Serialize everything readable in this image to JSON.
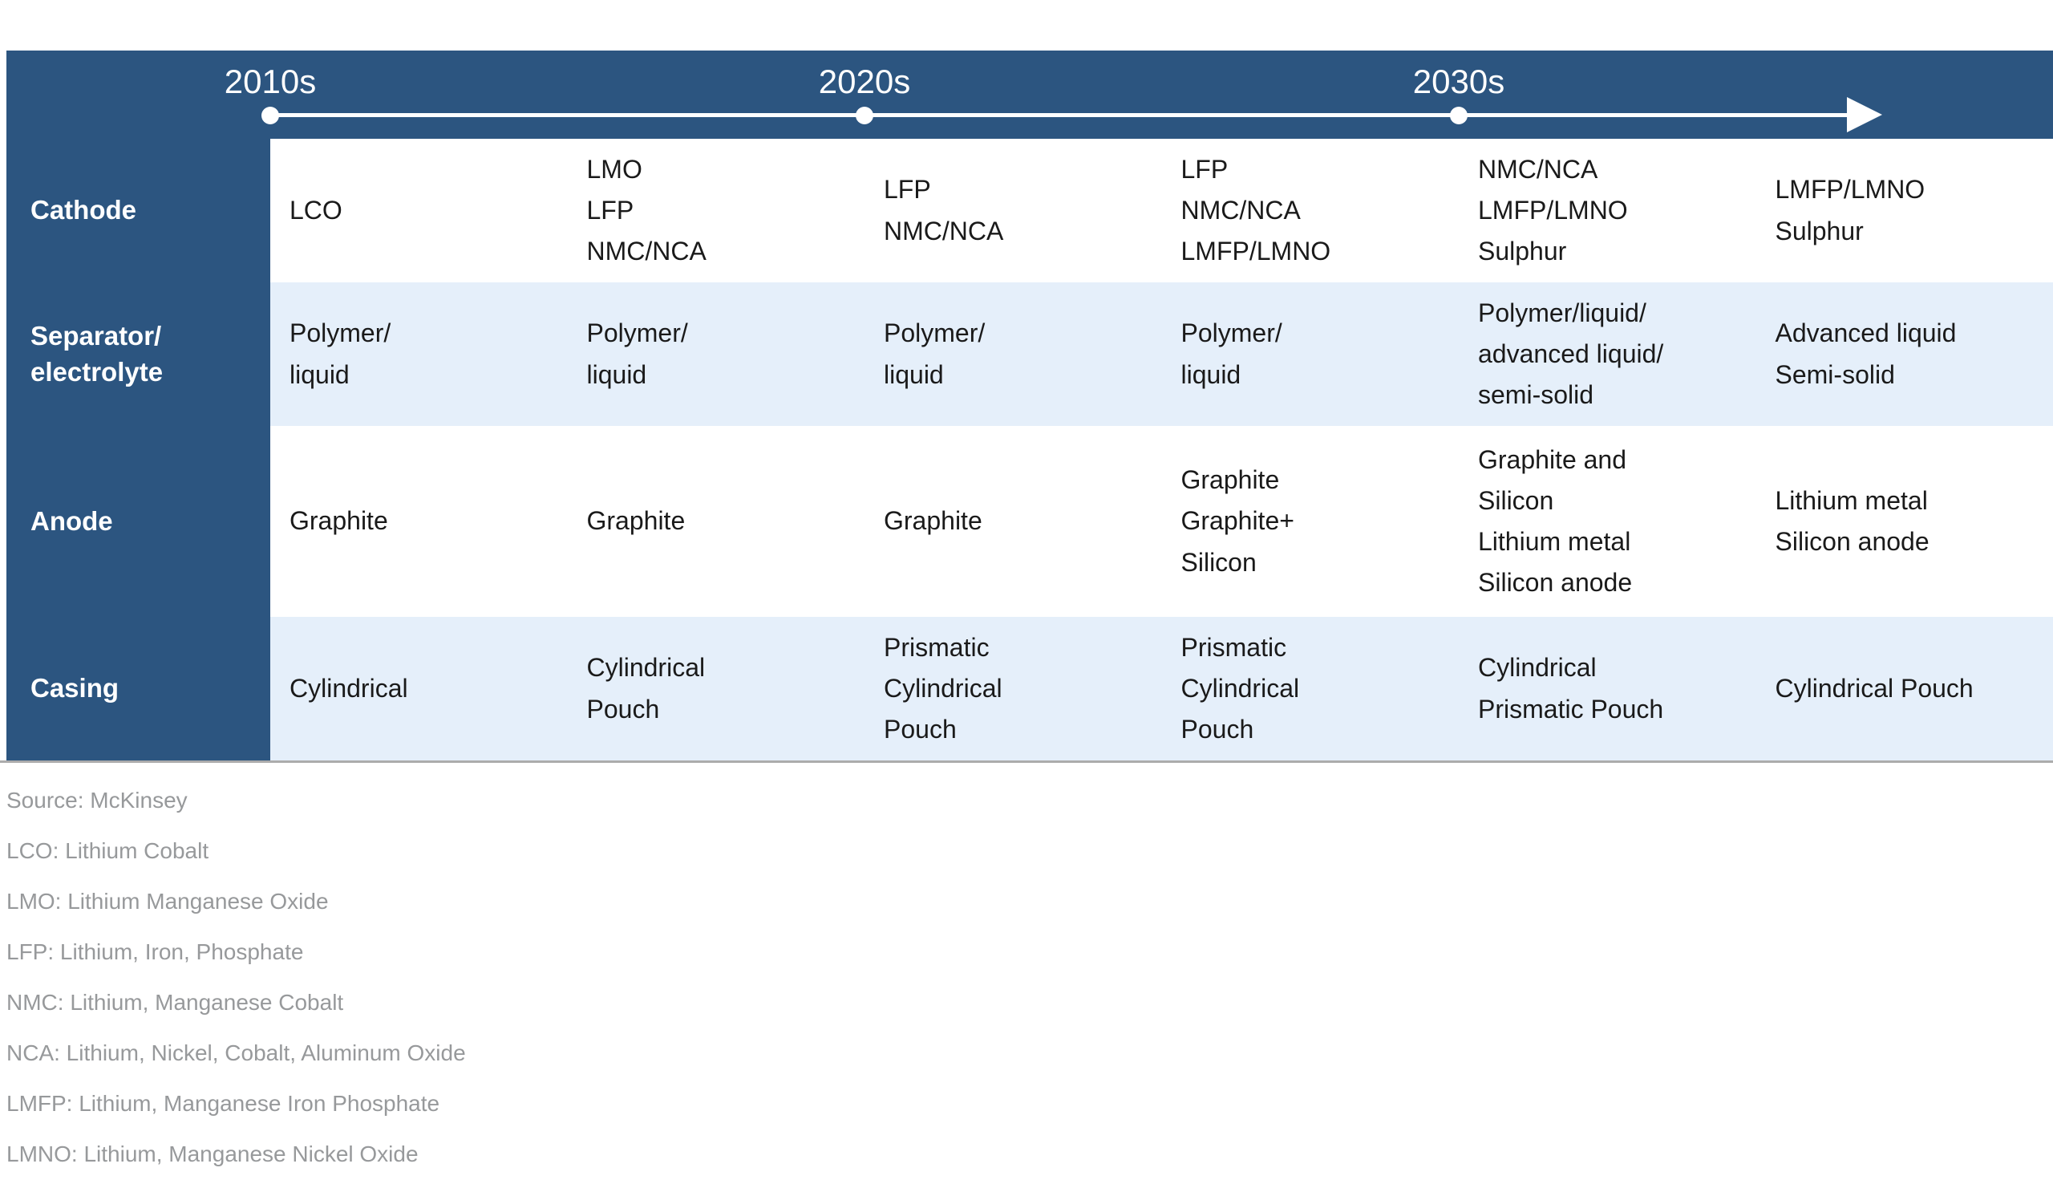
{
  "colors": {
    "navy": "#2C5580",
    "light_blue": "#E5EFFA",
    "text": "#1A1A1A",
    "footnote_gray": "#97999B",
    "border_gray": "#ACACAC"
  },
  "timeline": {
    "decades": [
      "2010s",
      "2020s",
      "2030s"
    ]
  },
  "table": {
    "rows": [
      {
        "label": [
          "Cathode"
        ],
        "cells": [
          [
            "LCO"
          ],
          [
            "LMO",
            "LFP",
            "NMC/NCA"
          ],
          [
            "LFP",
            "NMC/NCA"
          ],
          [
            "LFP",
            "NMC/NCA",
            "LMFP/LMNO"
          ],
          [
            "NMC/NCA",
            "LMFP/LMNO",
            "Sulphur"
          ],
          [
            "LMFP/LMNO",
            "Sulphur"
          ]
        ]
      },
      {
        "label": [
          "Separator/",
          "electrolyte"
        ],
        "cells": [
          [
            "Polymer/",
            "liquid"
          ],
          [
            "Polymer/",
            "liquid"
          ],
          [
            "Polymer/",
            "liquid"
          ],
          [
            "Polymer/",
            "liquid"
          ],
          [
            "Polymer/liquid/",
            "advanced liquid/",
            "semi-solid"
          ],
          [
            "Advanced liquid",
            "Semi-solid"
          ]
        ]
      },
      {
        "label": [
          "Anode"
        ],
        "cells": [
          [
            "Graphite"
          ],
          [
            "Graphite"
          ],
          [
            "Graphite"
          ],
          [
            "Graphite",
            "Graphite+",
            "Silicon"
          ],
          [
            "Graphite and",
            "Silicon",
            "Lithium metal",
            "Silicon anode"
          ],
          [
            "Lithium metal",
            "Silicon anode"
          ]
        ]
      },
      {
        "label": [
          "Casing"
        ],
        "cells": [
          [
            "Cylindrical"
          ],
          [
            "Cylindrical",
            "Pouch"
          ],
          [
            "Prismatic",
            "Cylindrical",
            "Pouch"
          ],
          [
            "Prismatic",
            "Cylindrical",
            "Pouch"
          ],
          [
            "Cylindrical",
            "Prismatic Pouch"
          ],
          [
            "Cylindrical Pouch"
          ]
        ]
      }
    ]
  },
  "footnotes": [
    "Source: McKinsey",
    "LCO: Lithium Cobalt",
    "LMO: Lithium Manganese Oxide",
    "LFP: Lithium, Iron, Phosphate",
    "NMC: Lithium, Manganese Cobalt",
    "NCA: Lithium, Nickel, Cobalt, Aluminum Oxide",
    "LMFP: Lithium, Manganese Iron Phosphate",
    "LMNO: Lithium, Manganese Nickel Oxide"
  ]
}
